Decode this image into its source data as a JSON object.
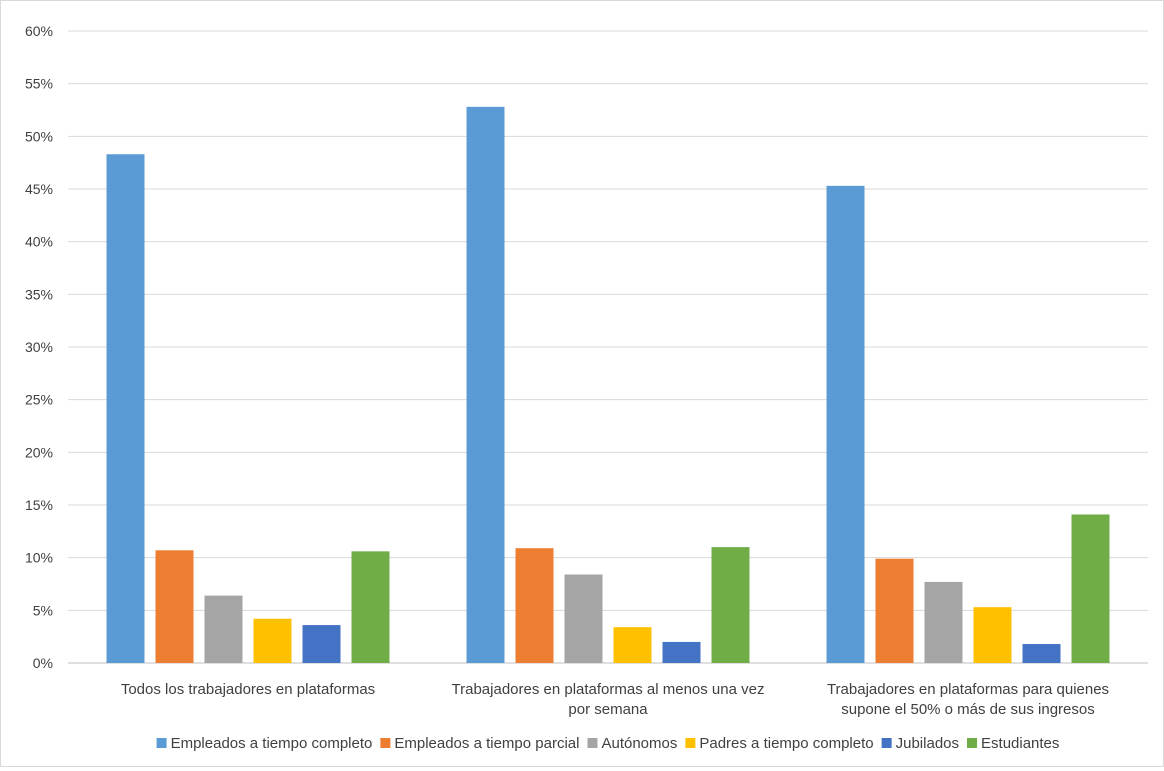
{
  "chart_data": {
    "type": "bar",
    "title": "",
    "xlabel": "",
    "ylabel": "",
    "ylim": [
      0,
      0.6
    ],
    "yticks": [
      "0%",
      "5%",
      "10%",
      "15%",
      "20%",
      "25%",
      "30%",
      "35%",
      "40%",
      "45%",
      "50%",
      "55%",
      "60%"
    ],
    "grid": true,
    "legend_position": "bottom",
    "categories": [
      [
        "Todos los trabajadores en plataformas"
      ],
      [
        "Trabajadores en plataformas al menos una vez",
        "por semana"
      ],
      [
        "Trabajadores en plataformas para quienes",
        "supone el 50% o más de sus ingresos"
      ]
    ],
    "series": [
      {
        "name": "Empleados a tiempo completo",
        "color": "#5b9bd5",
        "values": [
          0.483,
          0.528,
          0.453
        ]
      },
      {
        "name": "Empleados a tiempo parcial",
        "color": "#ed7d31",
        "values": [
          0.107,
          0.109,
          0.099
        ]
      },
      {
        "name": "Autónomos",
        "color": "#a5a5a5",
        "values": [
          0.064,
          0.084,
          0.077
        ]
      },
      {
        "name": "Padres a tiempo completo",
        "color": "#ffc000",
        "values": [
          0.042,
          0.034,
          0.053
        ]
      },
      {
        "name": "Jubilados",
        "color": "#4472c4",
        "values": [
          0.036,
          0.02,
          0.018
        ]
      },
      {
        "name": "Estudiantes",
        "color": "#70ad47",
        "values": [
          0.106,
          0.11,
          0.141
        ]
      }
    ]
  }
}
